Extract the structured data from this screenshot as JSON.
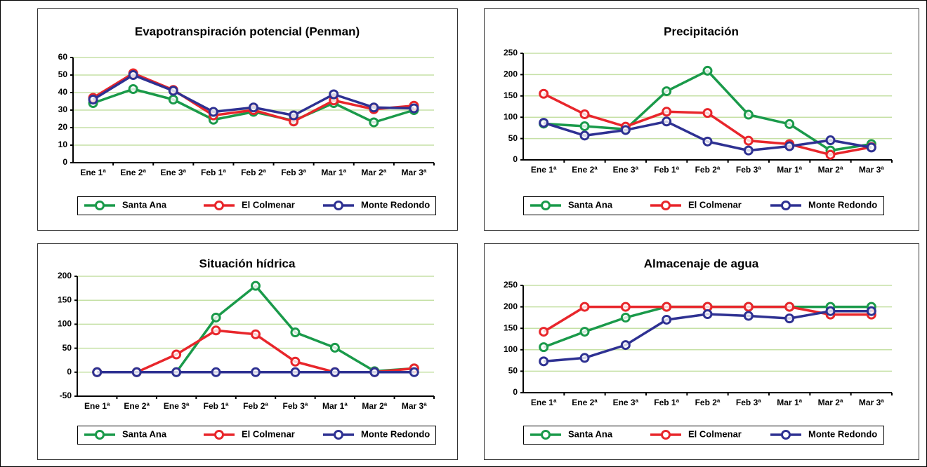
{
  "chart_data": [
    {
      "type": "line",
      "title": "Evapotranspiración potencial (Penman)",
      "categories": [
        "Ene 1ª",
        "Ene 2ª",
        "Ene 3ª",
        "Feb 1ª",
        "Feb 2ª",
        "Feb 3ª",
        "Mar 1ª",
        "Mar 2ª",
        "Mar 3ª"
      ],
      "ylim": [
        0,
        60
      ],
      "yticks": [
        0,
        10,
        20,
        30,
        40,
        50,
        60
      ],
      "grid": true,
      "series": [
        {
          "name": "Santa Ana",
          "color": "#1a9a4a",
          "values": [
            34,
            42,
            36,
            24.5,
            29,
            24,
            34,
            23,
            30
          ]
        },
        {
          "name": "El Colmenar",
          "color": "#e8262b",
          "values": [
            37,
            51,
            41.5,
            27,
            30,
            23.5,
            35.5,
            30.5,
            32.5
          ]
        },
        {
          "name": "Monte Redondo",
          "color": "#2e3192",
          "values": [
            36,
            50,
            41,
            29,
            31.5,
            27,
            39,
            31.5,
            31
          ]
        }
      ]
    },
    {
      "type": "line",
      "title": "Precipitación",
      "categories": [
        "Ene 1ª",
        "Ene 2ª",
        "Ene 3ª",
        "Feb 1ª",
        "Feb 2ª",
        "Feb 3ª",
        "Mar 1ª",
        "Mar 2ª",
        "Mar 3ª"
      ],
      "ylim": [
        0,
        250
      ],
      "yticks": [
        0,
        50,
        100,
        150,
        200,
        250
      ],
      "grid": true,
      "series": [
        {
          "name": "Santa Ana",
          "color": "#1a9a4a",
          "values": [
            85,
            79,
            72,
            161,
            209,
            106,
            84,
            22,
            37
          ]
        },
        {
          "name": "El Colmenar",
          "color": "#e8262b",
          "values": [
            155,
            107,
            78,
            113,
            110,
            45,
            37,
            12,
            30
          ]
        },
        {
          "name": "Monte Redondo",
          "color": "#2e3192",
          "values": [
            87,
            57,
            70,
            90,
            43,
            22,
            32,
            46,
            29
          ]
        }
      ]
    },
    {
      "type": "line",
      "title": "Situación hídrica",
      "categories": [
        "Ene 1ª",
        "Ene 2ª",
        "Ene 3ª",
        "Feb 1ª",
        "Feb 2ª",
        "Feb 3ª",
        "Mar 1ª",
        "Mar 2ª",
        "Mar 3ª"
      ],
      "ylim": [
        -50,
        200
      ],
      "yticks": [
        -50,
        0,
        50,
        100,
        150,
        200
      ],
      "grid": true,
      "series": [
        {
          "name": "Santa Ana",
          "color": "#1a9a4a",
          "values": [
            0,
            0,
            0,
            114,
            180,
            83,
            51,
            2,
            8
          ]
        },
        {
          "name": "El Colmenar",
          "color": "#e8262b",
          "values": [
            0,
            0,
            37,
            87,
            79,
            22,
            0,
            0,
            8
          ]
        },
        {
          "name": "Monte Redondo",
          "color": "#2e3192",
          "values": [
            0,
            0,
            0,
            0,
            0,
            0,
            0,
            0,
            0
          ]
        }
      ]
    },
    {
      "type": "line",
      "title": "Almacenaje de agua",
      "categories": [
        "Ene 1ª",
        "Ene 2ª",
        "Ene 3ª",
        "Feb 1ª",
        "Feb 2ª",
        "Feb 3ª",
        "Mar 1ª",
        "Mar 2ª",
        "Mar 3ª"
      ],
      "ylim": [
        0,
        250
      ],
      "yticks": [
        0,
        50,
        100,
        150,
        200,
        250
      ],
      "grid": true,
      "series": [
        {
          "name": "Santa Ana",
          "color": "#1a9a4a",
          "values": [
            106,
            142,
            175,
            200,
            200,
            200,
            200,
            200,
            200
          ]
        },
        {
          "name": "El Colmenar",
          "color": "#e8262b",
          "values": [
            142,
            200,
            200,
            200,
            200,
            200,
            200,
            182,
            182
          ]
        },
        {
          "name": "Monte Redondo",
          "color": "#2e3192",
          "values": [
            73,
            81,
            111,
            170,
            183,
            179,
            173,
            190,
            190
          ]
        }
      ]
    }
  ]
}
